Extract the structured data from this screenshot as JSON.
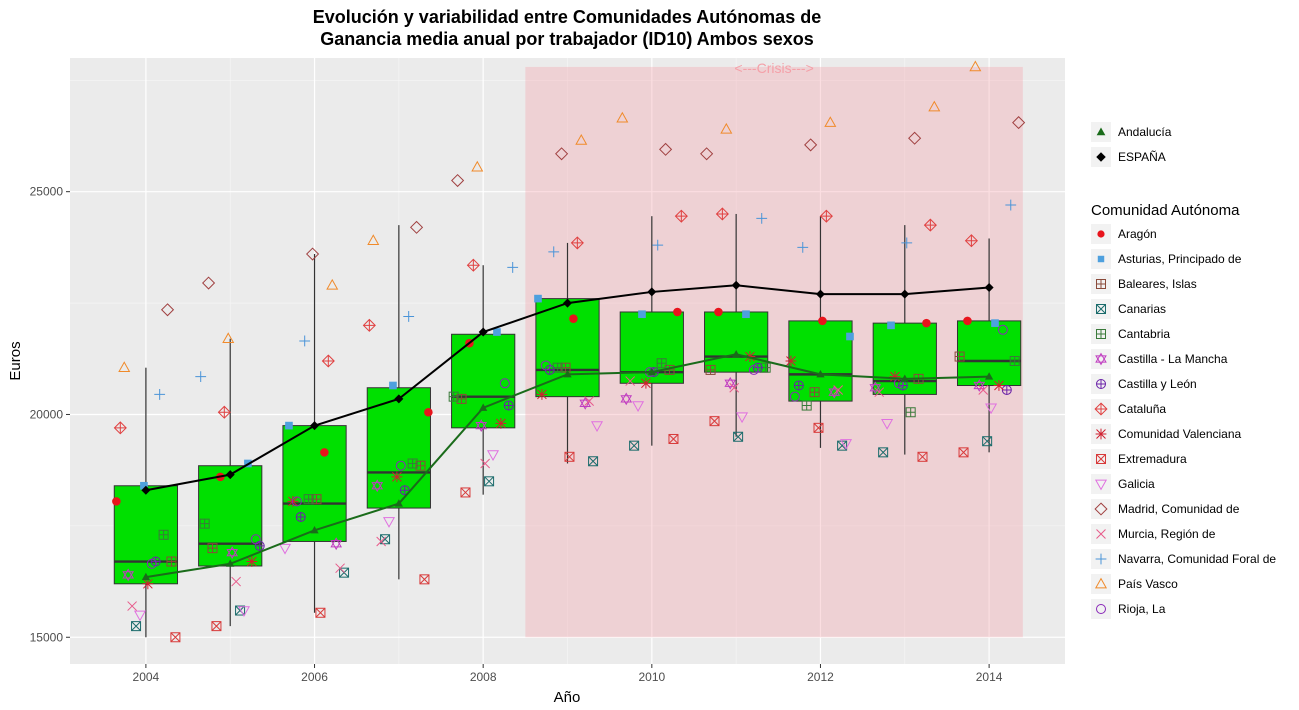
{
  "chart_data": {
    "type": "boxplot",
    "title_line1": "Evolución y variabilidad entre Comunidades Autónomas de",
    "title_line2": "Ganancia media anual por trabajador (ID10) Ambos sexos",
    "xlabel": "Año",
    "ylabel": "Euros",
    "xlim": [
      2003.1,
      2014.9
    ],
    "ylim": [
      14400,
      28000
    ],
    "x_ticks": [
      2004,
      2006,
      2008,
      2010,
      2012,
      2014
    ],
    "y_ticks": [
      15000,
      20000,
      25000
    ],
    "grid": true,
    "years": [
      2004,
      2005,
      2006,
      2007,
      2008,
      2009,
      2010,
      2011,
      2012,
      2013,
      2014
    ],
    "crisis": {
      "label": "<---Crisis--->",
      "x_start": 2008.5,
      "x_end": 2014.4,
      "y_min": 15000,
      "y_max": 27800,
      "color": "#f4a0a8"
    },
    "boxes": [
      {
        "year": 2004,
        "low": 15000,
        "q1": 16200,
        "median": 16700,
        "q3": 18400,
        "high": 21050
      },
      {
        "year": 2005,
        "low": 15250,
        "q1": 16600,
        "median": 17100,
        "q3": 18850,
        "high": 21700
      },
      {
        "year": 2006,
        "low": 15550,
        "q1": 17150,
        "median": 18000,
        "q3": 19750,
        "high": 23600
      },
      {
        "year": 2007,
        "low": 16300,
        "q1": 17900,
        "median": 18700,
        "q3": 20600,
        "high": 24250
      },
      {
        "year": 2008,
        "low": 18200,
        "q1": 19700,
        "median": 20400,
        "q3": 21800,
        "high": 23350
      },
      {
        "year": 2009,
        "low": 18900,
        "q1": 20400,
        "median": 21000,
        "q3": 22600,
        "high": 23850
      },
      {
        "year": 2010,
        "low": 19300,
        "q1": 20700,
        "median": 20950,
        "q3": 22300,
        "high": 24450
      },
      {
        "year": 2011,
        "low": 19500,
        "q1": 20950,
        "median": 21300,
        "q3": 22300,
        "high": 24500
      },
      {
        "year": 2012,
        "low": 19250,
        "q1": 20300,
        "median": 20900,
        "q3": 22100,
        "high": 24450
      },
      {
        "year": 2013,
        "low": 19100,
        "q1": 20450,
        "median": 20750,
        "q3": 22050,
        "high": 24250
      },
      {
        "year": 2014,
        "low": 19150,
        "q1": 20650,
        "median": 21200,
        "q3": 22100,
        "high": 23950
      }
    ],
    "box_fill": "#00e000",
    "espana": {
      "name": "ESPAÑA",
      "color": "#000000",
      "values": [
        18300,
        18650,
        19750,
        20350,
        21850,
        22500,
        22750,
        22900,
        22700,
        22700,
        22850
      ]
    },
    "andalucia": {
      "name": "Andalucía",
      "color": "#1a6b1a",
      "values": [
        16350,
        16650,
        17400,
        18000,
        20150,
        20900,
        20950,
        21350,
        20900,
        20800,
        20850
      ]
    },
    "legend_title": "Comunidad Autónoma",
    "communities": [
      {
        "name": "Aragón",
        "color": "#e8141c",
        "shape": "filled-circle",
        "values": [
          18050,
          18600,
          19150,
          20050,
          21600,
          22150,
          22300,
          22300,
          22100,
          22050,
          22100
        ]
      },
      {
        "name": "Asturias, Principado de",
        "color": "#4ea0de",
        "shape": "filled-square",
        "values": [
          18400,
          18900,
          19750,
          20650,
          21850,
          22600,
          22250,
          22250,
          21750,
          22000,
          22050
        ]
      },
      {
        "name": "Baleares, Islas",
        "color": "#8a4a3a",
        "shape": "square-plus",
        "values": [
          16700,
          17000,
          18100,
          18850,
          20350,
          21050,
          21000,
          21000,
          20500,
          20800,
          21300
        ]
      },
      {
        "name": "Canarias",
        "color": "#1a6b6b",
        "shape": "square-x",
        "values": [
          15250,
          15600,
          16450,
          17200,
          18500,
          18950,
          19300,
          19500,
          19300,
          19150,
          19400
        ]
      },
      {
        "name": "Cantabria",
        "color": "#3a7a3a",
        "shape": "square-plus",
        "values": [
          17300,
          17550,
          18100,
          18900,
          20400,
          21050,
          21150,
          21050,
          20200,
          20050,
          21200
        ]
      },
      {
        "name": "Castilla - La Mancha",
        "color": "#c03cc0",
        "shape": "star-of-david",
        "values": [
          16400,
          16900,
          17100,
          18400,
          19750,
          20250,
          20350,
          20700,
          20500,
          20600,
          20650
        ]
      },
      {
        "name": "Castilla y León",
        "color": "#6a22a8",
        "shape": "circle-plus",
        "values": [
          16700,
          17050,
          17700,
          18300,
          20200,
          21000,
          20950,
          21050,
          20650,
          20650,
          20550
        ]
      },
      {
        "name": "Cataluña",
        "color": "#e04040",
        "shape": "diamond-plus",
        "values": [
          19700,
          20050,
          21200,
          22000,
          23350,
          23850,
          24450,
          24500,
          24450,
          24250,
          23900
        ]
      },
      {
        "name": "Comunidad Valenciana",
        "color": "#d02030",
        "shape": "asterisk",
        "values": [
          16200,
          16700,
          18050,
          18600,
          19800,
          20450,
          20700,
          21300,
          21200,
          20850,
          20650
        ]
      },
      {
        "name": "Extremadura",
        "color": "#d83a3a",
        "shape": "square-x",
        "values": [
          15000,
          15250,
          15550,
          16300,
          18250,
          19050,
          19450,
          19850,
          19700,
          19050,
          19150
        ]
      },
      {
        "name": "Galicia",
        "color": "#e070e0",
        "shape": "triangle-down",
        "values": [
          15500,
          15600,
          17000,
          17600,
          19100,
          19750,
          20200,
          19950,
          19350,
          19800,
          20150
        ]
      },
      {
        "name": "Madrid, Comunidad de",
        "color": "#a04040",
        "shape": "diamond",
        "values": [
          22350,
          22950,
          23600,
          24200,
          25250,
          25850,
          25950,
          25850,
          26050,
          26200,
          26550
        ]
      },
      {
        "name": "Murcia, Región de",
        "color": "#e85a8a",
        "shape": "cross",
        "values": [
          15700,
          16250,
          16550,
          17150,
          18900,
          20300,
          20750,
          20600,
          20550,
          20500,
          20550
        ]
      },
      {
        "name": "Navarra, Comunidad Foral de",
        "color": "#4a94d8",
        "shape": "plus",
        "values": [
          20450,
          20850,
          21650,
          22200,
          23300,
          23650,
          23800,
          24400,
          23750,
          23850,
          24700
        ]
      },
      {
        "name": "País Vasco",
        "color": "#f08a2a",
        "shape": "triangle-up",
        "values": [
          21050,
          21700,
          22900,
          23900,
          25550,
          26150,
          26650,
          26400,
          26550,
          26900,
          27800
        ]
      },
      {
        "name": "Rioja, La",
        "color": "#8a28b8",
        "shape": "circle",
        "values": [
          16650,
          17200,
          18050,
          18850,
          20700,
          21100,
          20950,
          21000,
          20400,
          20700,
          21900
        ]
      }
    ]
  }
}
